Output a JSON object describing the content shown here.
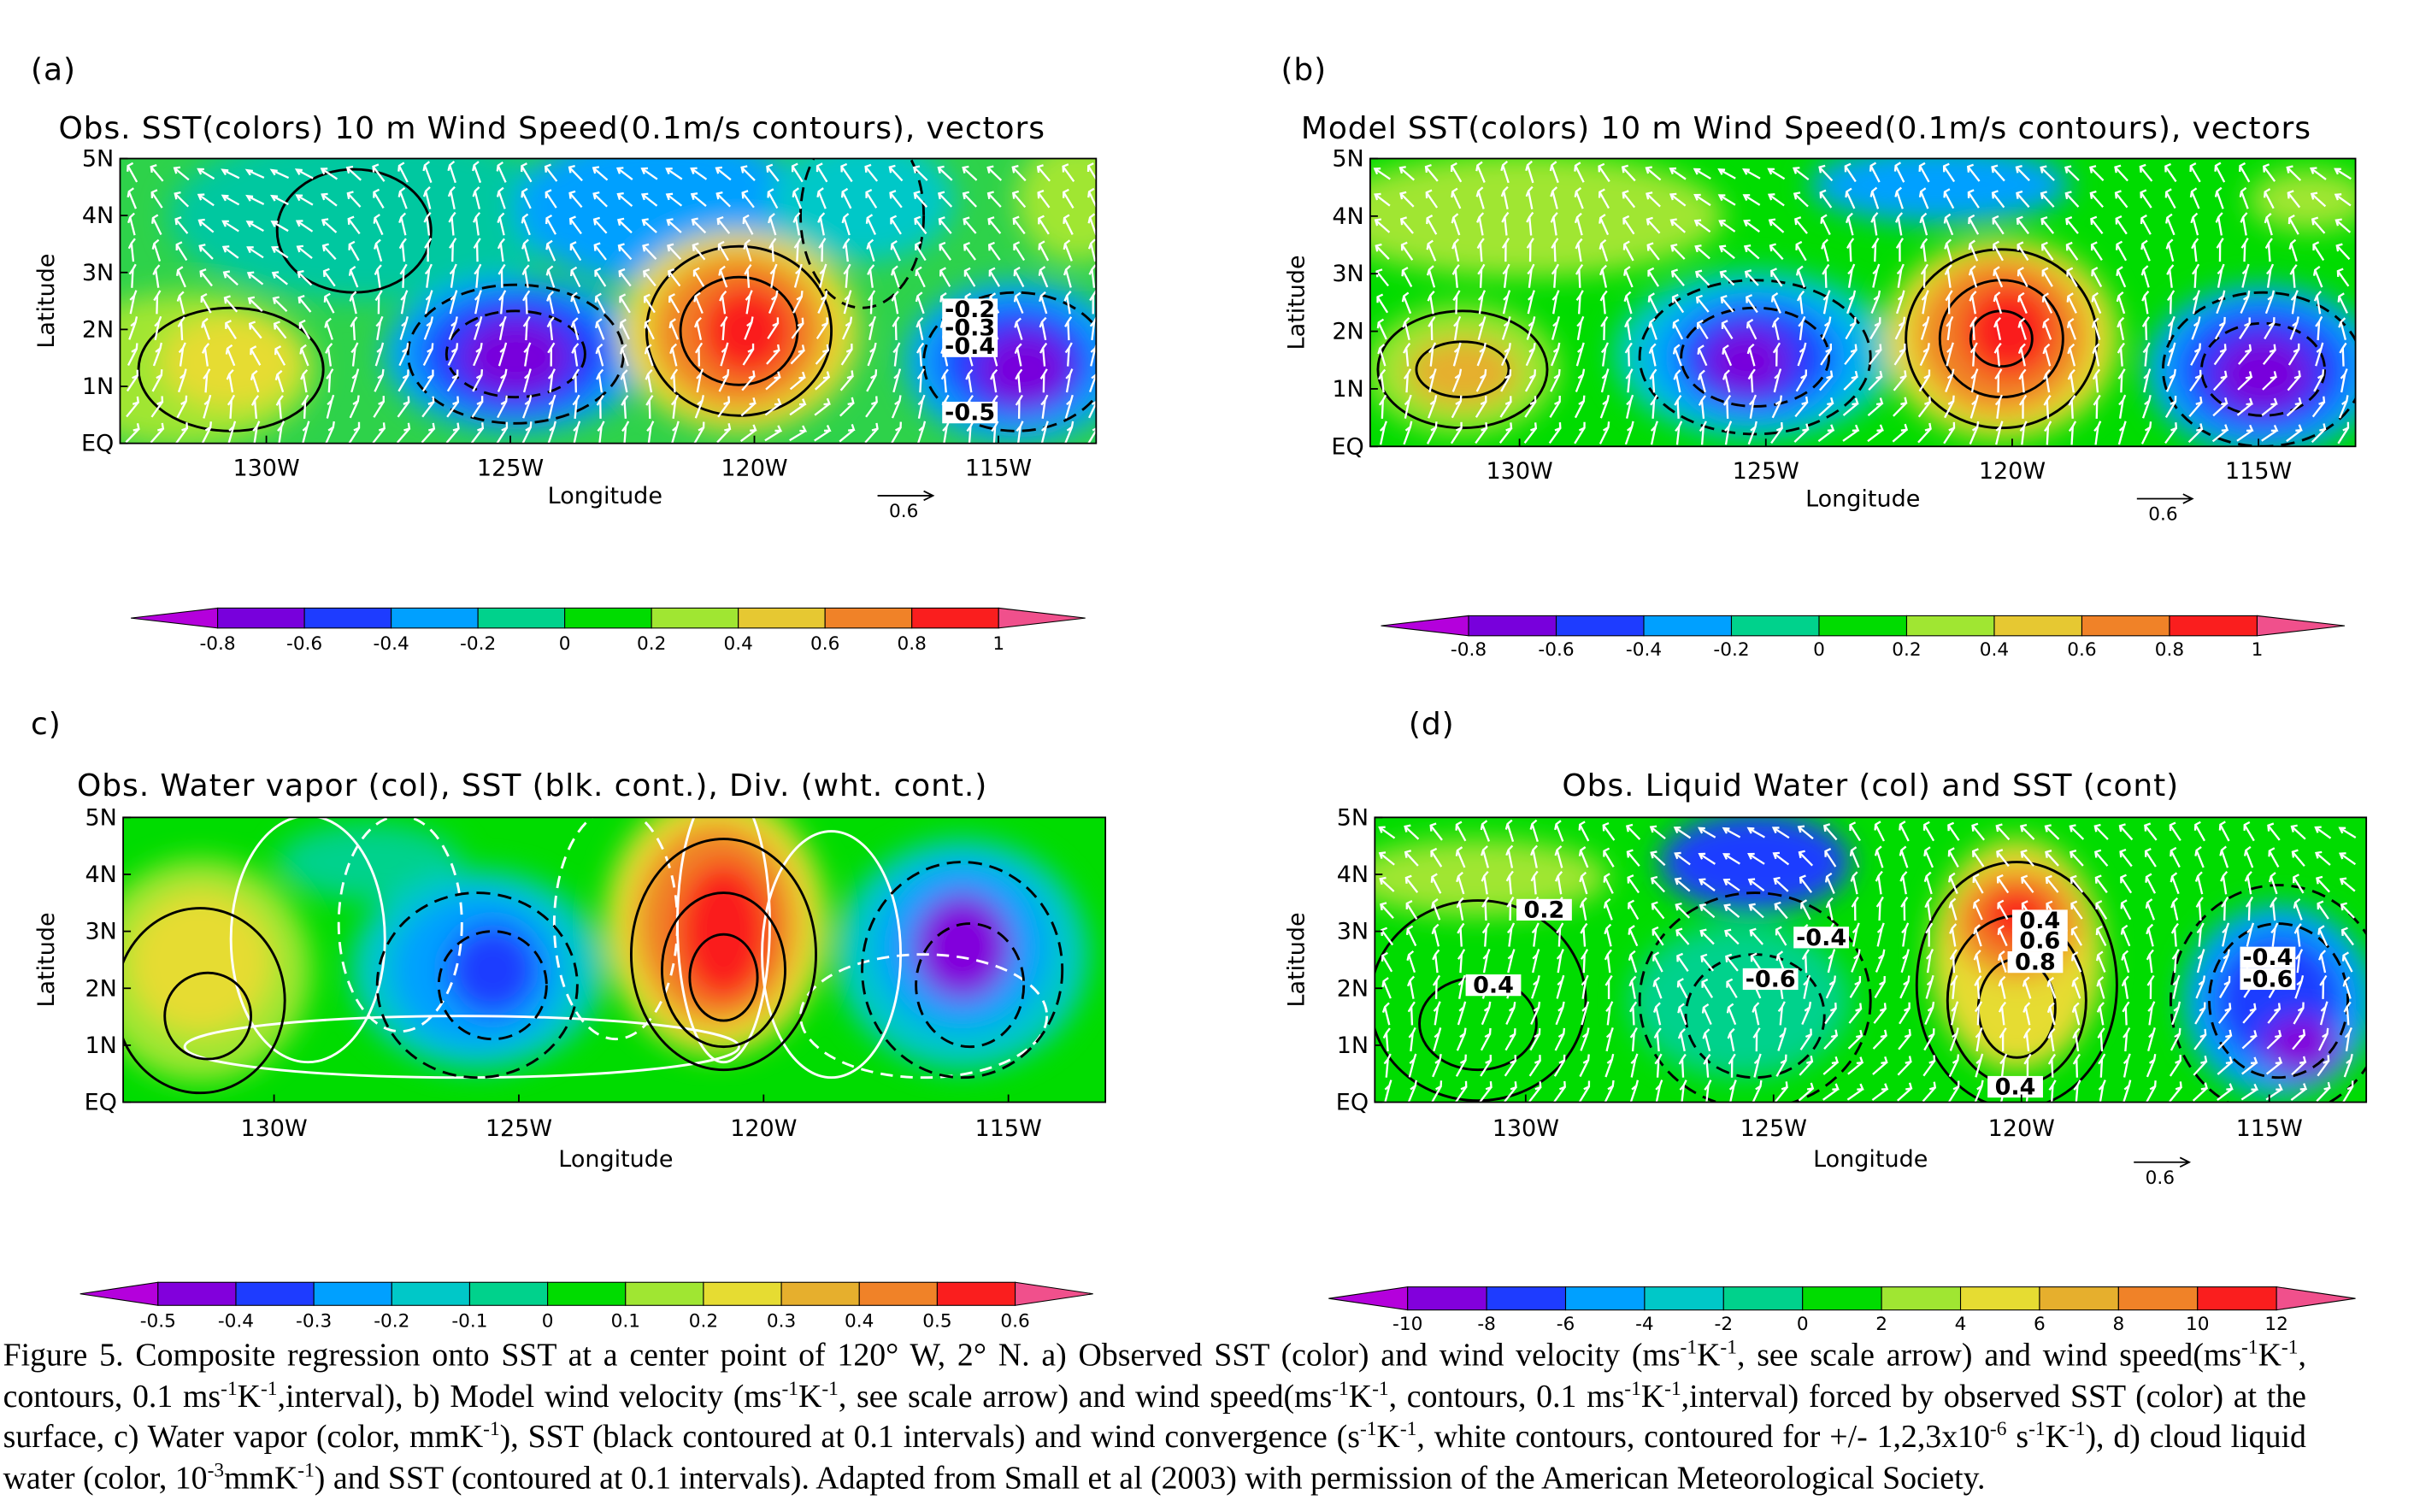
{
  "panels": [
    {
      "label": "(a)",
      "title": "Obs. SST(colors) 10 m Wind Speed(0.1m/s contours), vectors",
      "yaxis_label": "Latitude",
      "xaxis_label": "Longitude",
      "yticks": [
        "5N",
        "4N",
        "3N",
        "2N",
        "1N",
        "EQ"
      ],
      "xticks": [
        "130W",
        "125W",
        "120W",
        "115W"
      ],
      "scale_arrow": "0.6",
      "contour_labels": [
        "-0.2",
        "-0.3",
        "-0.4",
        "-0.5"
      ],
      "colorbar": {
        "ticks": [
          -0.8,
          -0.6,
          -0.4,
          -0.2,
          0,
          0.2,
          0.4,
          0.6,
          0.8,
          1
        ],
        "colors": [
          "#b400dc",
          "#7800dc",
          "#1e3cff",
          "#00a0ff",
          "#00d28c",
          "#00dc00",
          "#a0e632",
          "#e6c832",
          "#f08228",
          "#fa1e1e",
          "#f0508c"
        ]
      }
    },
    {
      "label": "(b)",
      "title": "Model SST(colors) 10 m Wind Speed(0.1m/s contours), vectors",
      "yaxis_label": "Latitude",
      "xaxis_label": "Longitude",
      "yticks": [
        "5N",
        "4N",
        "3N",
        "2N",
        "1N",
        "EQ"
      ],
      "xticks": [
        "130W",
        "125W",
        "120W",
        "115W"
      ],
      "scale_arrow": "0.6",
      "colorbar": {
        "ticks": [
          -0.8,
          -0.6,
          -0.4,
          -0.2,
          0,
          0.2,
          0.4,
          0.6,
          0.8,
          1
        ],
        "colors": [
          "#b400dc",
          "#7800dc",
          "#1e3cff",
          "#00a0ff",
          "#00d28c",
          "#00dc00",
          "#a0e632",
          "#e6c832",
          "#f08228",
          "#fa1e1e",
          "#f0508c"
        ]
      }
    },
    {
      "label": "c)",
      "title": "Obs. Water vapor (col), SST (blk. cont.), Div. (wht. cont.)",
      "yaxis_label": "Latitude",
      "xaxis_label": "Longitude",
      "yticks": [
        "5N",
        "4N",
        "3N",
        "2N",
        "1N",
        "EQ"
      ],
      "xticks": [
        "130W",
        "125W",
        "120W",
        "115W"
      ],
      "colorbar": {
        "ticks": [
          -0.5,
          -0.4,
          -0.3,
          -0.2,
          -0.1,
          0,
          0.1,
          0.2,
          0.3,
          0.4,
          0.5,
          0.6
        ],
        "colors": [
          "#b400dc",
          "#8200dc",
          "#1e3cff",
          "#00a0ff",
          "#00c8c8",
          "#00d28c",
          "#00dc00",
          "#a0e632",
          "#e6dc32",
          "#e6af2d",
          "#f08228",
          "#fa1e1e",
          "#f0508c"
        ]
      }
    },
    {
      "label": "(d)",
      "title": "Obs. Liquid Water (col) and SST (cont)",
      "yaxis_label": "Latitude",
      "xaxis_label": "Longitude",
      "yticks": [
        "5N",
        "4N",
        "3N",
        "2N",
        "1N",
        "EQ"
      ],
      "xticks": [
        "130W",
        "125W",
        "120W",
        "115W"
      ],
      "scale_arrow": "0.6",
      "contour_labels": [
        "0.2",
        "0.4",
        "-0.4",
        "-0.6",
        "0.4",
        "0.6",
        "0.8",
        "-0.4",
        "-0.6",
        "0.4"
      ],
      "colorbar": {
        "ticks": [
          -10,
          -8,
          -6,
          -4,
          -2,
          0,
          2,
          4,
          6,
          8,
          10,
          12
        ],
        "colors": [
          "#b400dc",
          "#8200dc",
          "#1e3cff",
          "#00a0ff",
          "#00c8c8",
          "#00d28c",
          "#00dc00",
          "#a0e632",
          "#e6dc32",
          "#e6af2d",
          "#f08228",
          "#fa1e1e",
          "#f0508c"
        ]
      }
    }
  ],
  "caption": [
    "Figure 5. Composite regression onto SST at a center point of 120° W, 2° N. a) Observed SST (color) and wind velocity (ms",
    {
      "sup": "-1"
    },
    "K",
    {
      "sup": "-1"
    },
    ", see scale arrow) and wind speed(ms",
    {
      "sup": "-1"
    },
    "K",
    {
      "sup": "-1"
    },
    ", contours, 0.1 ms",
    {
      "sup": "-1"
    },
    "K",
    {
      "sup": "-1"
    },
    ",interval), b) Model wind velocity (ms",
    {
      "sup": "-1"
    },
    "K",
    {
      "sup": "-1"
    },
    ", see scale arrow) and wind speed(ms",
    {
      "sup": "-1"
    },
    "K",
    {
      "sup": "-1"
    },
    ", contours, 0.1 ms",
    {
      "sup": "-1"
    },
    "K",
    {
      "sup": "-1"
    },
    ",interval) forced by observed SST (color) at the surface, c) Water vapor (color, mmK",
    {
      "sup": "-1"
    },
    "), SST (black contoured at 0.1 intervals) and wind convergence (s",
    {
      "sup": "-1"
    },
    "K",
    {
      "sup": "-1"
    },
    ", white contours, contoured for +/- 1,2,3x10",
    {
      "sup": "-6"
    },
    " s",
    {
      "sup": "-1"
    },
    "K",
    {
      "sup": "-1"
    },
    "), d) cloud liquid water (color, 10",
    {
      "sup": "-3"
    },
    "mmK",
    {
      "sup": "-1"
    },
    ") and SST (contoured at 0.1 intervals). Adapted from Small et al (2003) with permission of the American Meteorological Society."
  ]
}
